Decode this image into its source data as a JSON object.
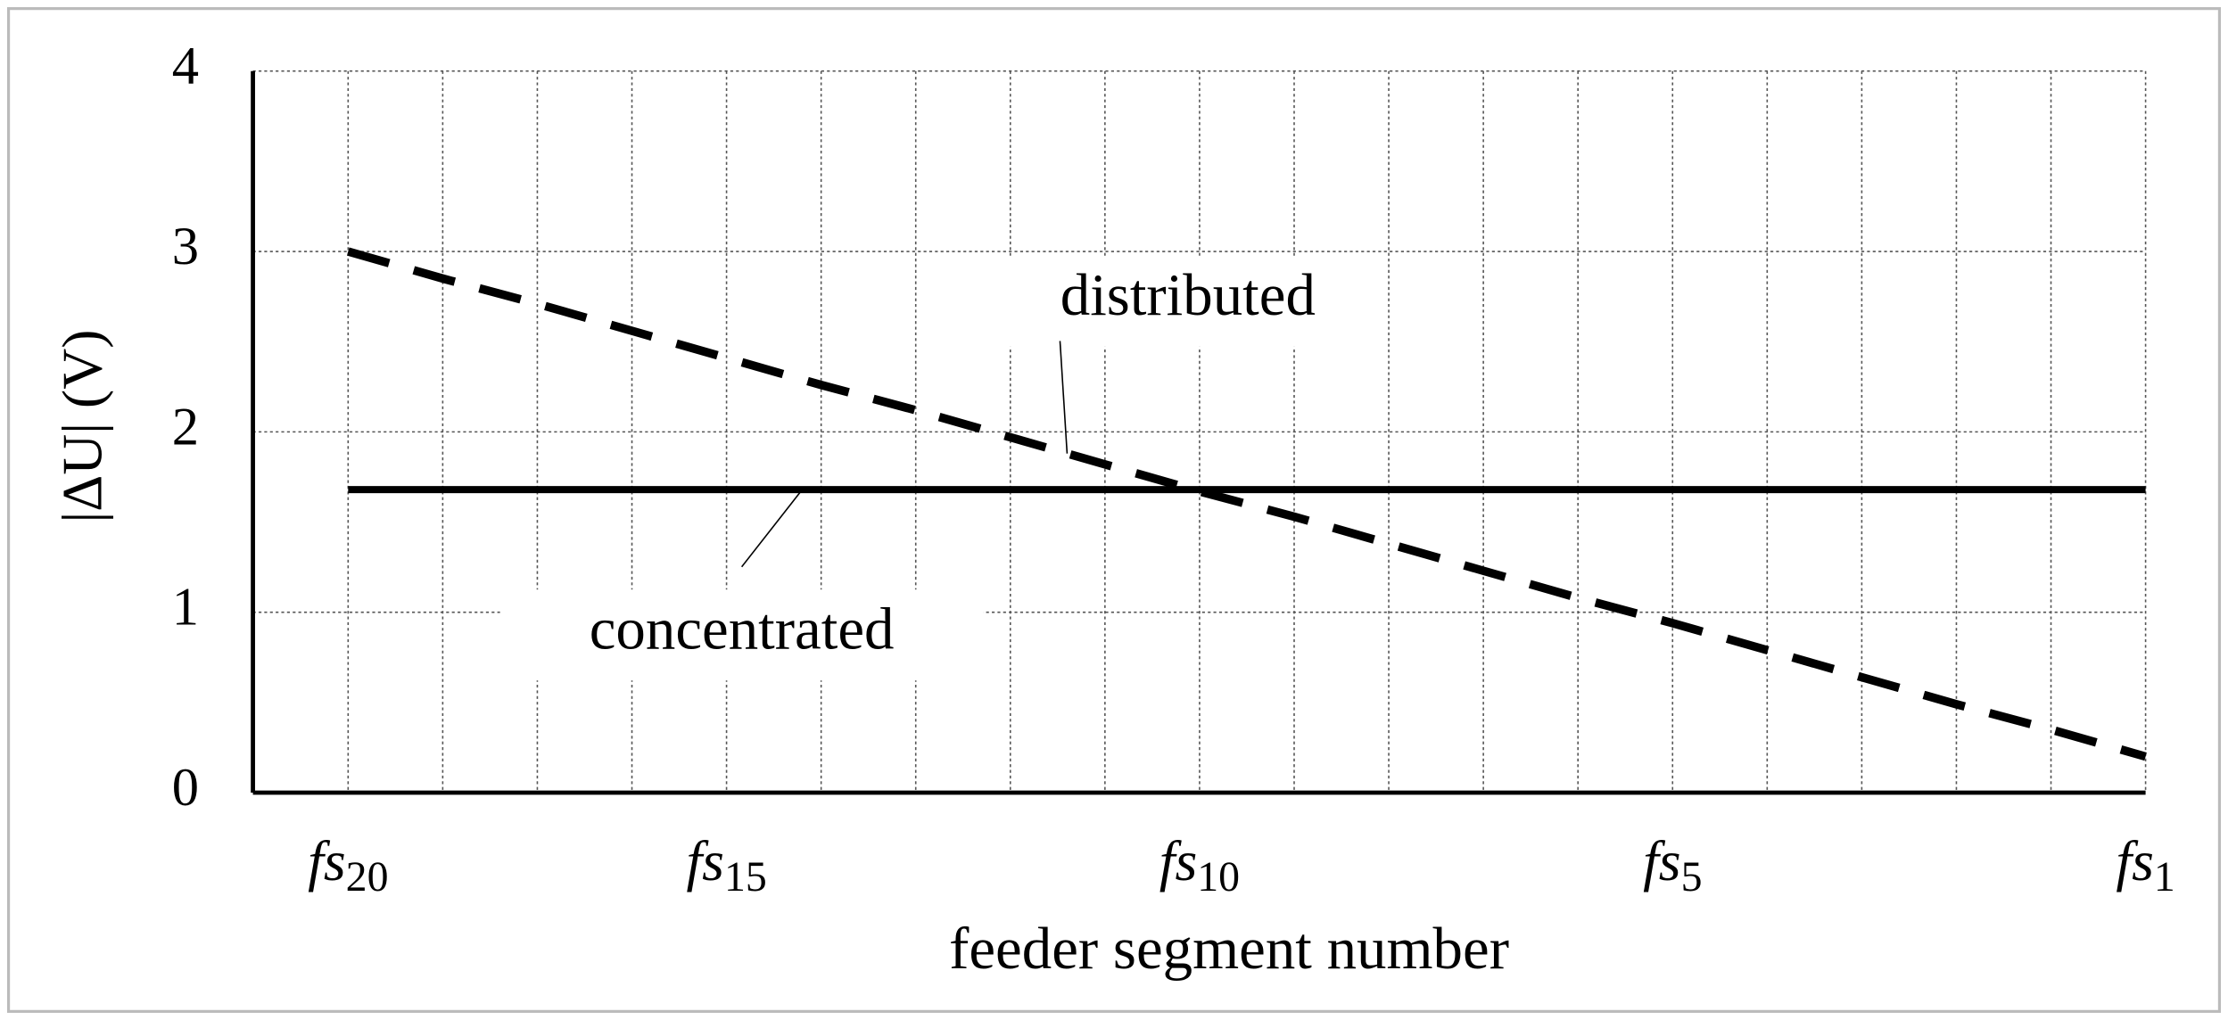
{
  "chart_data": {
    "type": "line",
    "x_label": "feeder segment number",
    "y_label": "|ΔU| (V)",
    "categories": [
      "fs20",
      null,
      null,
      null,
      "fs15",
      null,
      null,
      null,
      null,
      "fs10",
      null,
      null,
      null,
      null,
      "fs5",
      null,
      null,
      null,
      null,
      "fs1"
    ],
    "series": [
      {
        "name": "distributed",
        "color": "#000000",
        "dashed": true,
        "values": [
          3.0,
          2.85,
          2.71,
          2.56,
          2.41,
          2.26,
          2.12,
          1.97,
          1.82,
          1.67,
          1.53,
          1.38,
          1.23,
          1.08,
          0.94,
          0.79,
          0.64,
          0.49,
          0.35,
          0.2
        ]
      },
      {
        "name": "concentrated",
        "color": "#000000",
        "dashed": false,
        "values": [
          1.68,
          1.68,
          1.68,
          1.68,
          1.68,
          1.68,
          1.68,
          1.68,
          1.68,
          1.68,
          1.68,
          1.68,
          1.68,
          1.68,
          1.68,
          1.68,
          1.68,
          1.68,
          1.68,
          1.68
        ]
      }
    ],
    "ylim": [
      0,
      4
    ],
    "yticks": [
      0,
      1,
      2,
      3,
      4
    ],
    "grid": true
  }
}
